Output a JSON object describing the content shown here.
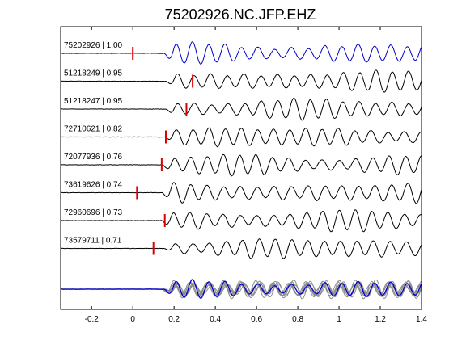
{
  "chart_data": {
    "type": "line",
    "title": "75202926.NC.JFP.EHZ",
    "xlabel": "",
    "ylabel": "",
    "xlim": [
      -0.35,
      1.4
    ],
    "xticks": [
      -0.2,
      0,
      0.2,
      0.4,
      0.6,
      0.8,
      1,
      1.2,
      1.4
    ],
    "xtick_labels": [
      "-0.2",
      "0",
      "0.2",
      "0.4",
      "0.6",
      "0.8",
      "1",
      "1.2",
      "1.4"
    ],
    "grid": false,
    "colors": {
      "reference": "#0000cc",
      "trace": "#000000",
      "pick": "#dd0000",
      "stack": "#8c8c8c"
    },
    "traces": [
      {
        "id": "75202926",
        "cc": "1.00",
        "label": "75202926 | 1.00",
        "pick_time": 0.0,
        "color": "reference",
        "onset": 0.15,
        "period": 0.08,
        "seed": 1
      },
      {
        "id": "51218249",
        "cc": "0.95",
        "label": "51218249 | 0.95",
        "pick_time": 0.29,
        "color": "trace",
        "onset": 0.16,
        "period": 0.08,
        "seed": 2
      },
      {
        "id": "51218247",
        "cc": "0.95",
        "label": "51218247 | 0.95",
        "pick_time": 0.26,
        "color": "trace",
        "onset": 0.16,
        "period": 0.08,
        "seed": 3
      },
      {
        "id": "72710621",
        "cc": "0.82",
        "label": "72710621 | 0.82",
        "pick_time": 0.16,
        "color": "trace",
        "onset": 0.15,
        "period": 0.079,
        "seed": 4
      },
      {
        "id": "72077936",
        "cc": "0.76",
        "label": "72077936 | 0.76",
        "pick_time": 0.14,
        "color": "trace",
        "onset": 0.14,
        "period": 0.08,
        "seed": 5
      },
      {
        "id": "73619626",
        "cc": "0.74",
        "label": "73619626 | 0.74",
        "pick_time": 0.02,
        "color": "trace",
        "onset": 0.14,
        "period": 0.081,
        "seed": 6
      },
      {
        "id": "72960696",
        "cc": "0.73",
        "label": "72960696 | 0.73",
        "pick_time": 0.155,
        "color": "trace",
        "onset": 0.14,
        "period": 0.08,
        "seed": 7
      },
      {
        "id": "73579711",
        "cc": "0.71",
        "label": "73579711 | 0.71",
        "pick_time": 0.1,
        "color": "trace",
        "onset": 0.15,
        "period": 0.08,
        "seed": 8
      }
    ],
    "stack": {
      "description": "overlay of all aligned traces at bottom",
      "reference_on_top": true
    }
  }
}
